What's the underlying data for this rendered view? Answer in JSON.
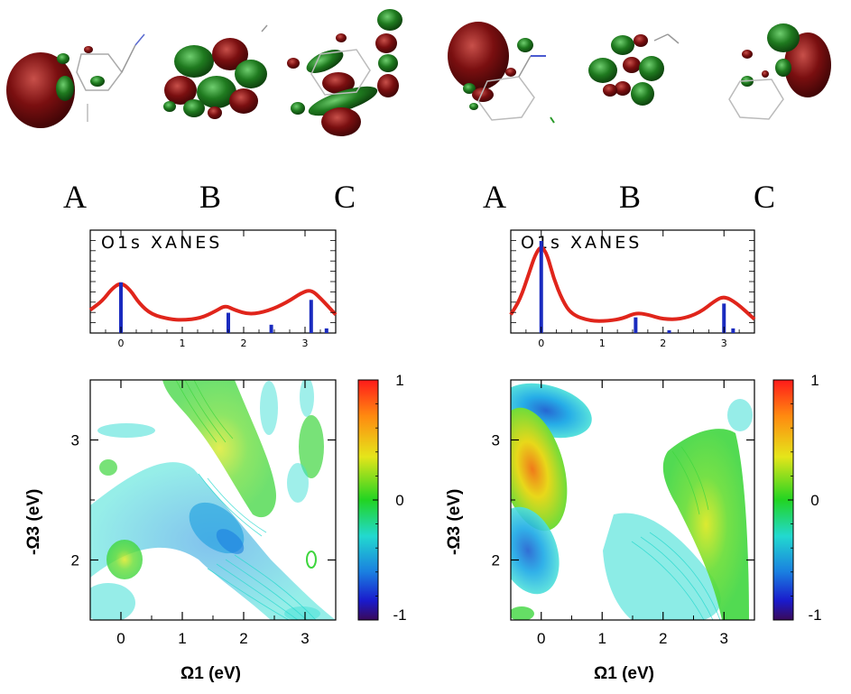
{
  "orbital_labels": {
    "left": [
      "A",
      "B",
      "C"
    ],
    "right": [
      "A",
      "B",
      "C"
    ]
  },
  "colors": {
    "orbital_red": "#7a0f10",
    "orbital_green": "#1f7a1f",
    "spectrum_line": "#e0251b",
    "stick": "#1a2bbf",
    "contour_green": "#3fd63f",
    "contour_cyan": "#29d9cf",
    "contour_blue": "#1a8fe0",
    "contour_orange": "#ff8a10"
  },
  "chart_data": [
    {
      "type": "line",
      "panel": "left-spectrum",
      "title": "O1s XANES",
      "xlim": [
        -0.5,
        3.5
      ],
      "ylim": [
        0,
        1.0
      ],
      "x_ticks": [
        0,
        1,
        2,
        3
      ],
      "x_tick_labels": [
        "0",
        "1",
        "2",
        "3"
      ],
      "series": [
        {
          "name": "XANES",
          "x": [
            -0.5,
            -0.3,
            -0.15,
            0,
            0.15,
            0.3,
            0.5,
            0.8,
            1.0,
            1.3,
            1.55,
            1.7,
            1.85,
            2.1,
            2.4,
            2.7,
            2.95,
            3.1,
            3.25,
            3.5
          ],
          "values": [
            0.25,
            0.35,
            0.48,
            0.55,
            0.47,
            0.32,
            0.2,
            0.15,
            0.14,
            0.16,
            0.24,
            0.3,
            0.25,
            0.2,
            0.24,
            0.33,
            0.44,
            0.47,
            0.38,
            0.2
          ]
        }
      ],
      "sticks": {
        "x": [
          0,
          1.75,
          2.45,
          3.1,
          3.35
        ],
        "values": [
          0.55,
          0.22,
          0.09,
          0.36,
          0.05
        ]
      }
    },
    {
      "type": "line",
      "panel": "right-spectrum",
      "title": "O1s XANES",
      "xlim": [
        -0.5,
        3.5
      ],
      "ylim": [
        0,
        1.0
      ],
      "x_ticks": [
        0,
        1,
        2,
        3
      ],
      "x_tick_labels": [
        "0",
        "1",
        "2",
        "3"
      ],
      "series": [
        {
          "name": "XANES",
          "x": [
            -0.5,
            -0.35,
            -0.2,
            -0.1,
            0,
            0.1,
            0.2,
            0.35,
            0.5,
            0.8,
            1.1,
            1.35,
            1.55,
            1.75,
            2.0,
            2.3,
            2.6,
            2.85,
            3.0,
            3.2,
            3.5
          ],
          "values": [
            0.2,
            0.36,
            0.65,
            0.85,
            0.95,
            0.85,
            0.6,
            0.35,
            0.2,
            0.13,
            0.13,
            0.16,
            0.22,
            0.2,
            0.15,
            0.15,
            0.22,
            0.35,
            0.4,
            0.33,
            0.15
          ]
        }
      ],
      "sticks": {
        "x": [
          0,
          1.55,
          2.1,
          3.0,
          3.15
        ],
        "values": [
          1.0,
          0.17,
          0.03,
          0.32,
          0.05
        ]
      }
    },
    {
      "type": "heatmap",
      "panel": "left-2d",
      "xlabel": "Ω1 (eV)",
      "ylabel": "-Ω3 (eV)",
      "xlim": [
        -0.5,
        3.5
      ],
      "ylim": [
        1.5,
        3.5
      ],
      "x_ticks": [
        0,
        1,
        2,
        3
      ],
      "x_tick_labels": [
        "0",
        "1",
        "2",
        "3"
      ],
      "y_ticks": [
        2,
        3
      ],
      "y_tick_labels": [
        "2",
        "3"
      ],
      "colorbar": {
        "ticks": [
          1,
          0,
          -1
        ],
        "tick_labels": [
          "1",
          "0",
          "-1"
        ]
      },
      "features": [
        {
          "x": 1.8,
          "y": 2.2,
          "value": -0.3
        },
        {
          "x": 1.7,
          "y": 3.3,
          "value": 0.2
        },
        {
          "x": 0.0,
          "y": 2.0,
          "value": 0.15
        }
      ]
    },
    {
      "type": "heatmap",
      "panel": "right-2d",
      "xlabel": "Ω1 (eV)",
      "ylabel": "-Ω3 (eV)",
      "xlim": [
        -0.5,
        3.5
      ],
      "ylim": [
        1.5,
        3.5
      ],
      "x_ticks": [
        0,
        1,
        2,
        3
      ],
      "x_tick_labels": [
        "0",
        "1",
        "2",
        "3"
      ],
      "y_ticks": [
        2,
        3
      ],
      "y_tick_labels": [
        "2",
        "3"
      ],
      "colorbar": {
        "ticks": [
          1,
          0,
          -1
        ],
        "tick_labels": [
          "1",
          "0",
          "-1"
        ]
      },
      "features": [
        {
          "x": -0.15,
          "y": 2.8,
          "value": 0.6
        },
        {
          "x": 0.0,
          "y": 3.2,
          "value": -0.4
        },
        {
          "x": -0.3,
          "y": 2.1,
          "value": -0.3
        },
        {
          "x": 3.0,
          "y": 2.5,
          "value": 0.25
        }
      ]
    }
  ]
}
